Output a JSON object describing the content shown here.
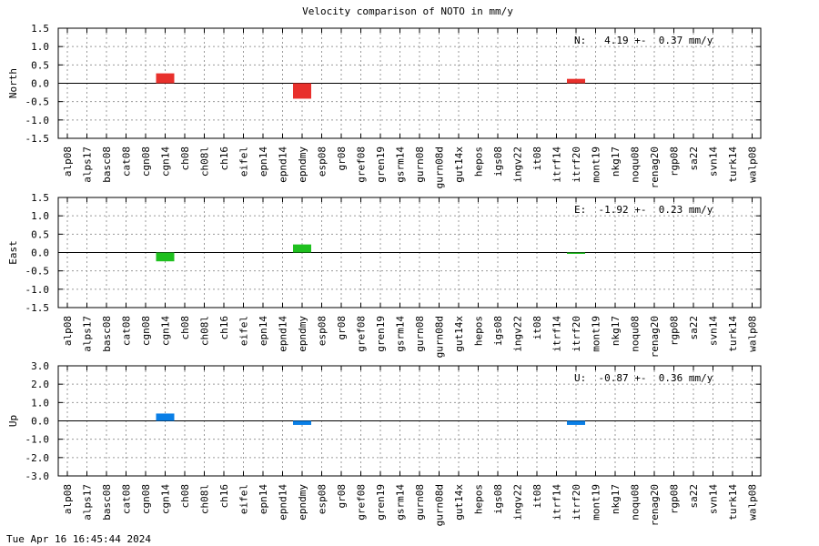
{
  "chart_data": {
    "title": "Velocity comparison of NOTO in mm/y",
    "categories": [
      "alp08",
      "alps17",
      "basc08",
      "cat08",
      "cgn08",
      "cgn14",
      "ch08",
      "ch08l",
      "ch16",
      "eifel",
      "epn14",
      "epnd14",
      "epndmy",
      "esp08",
      "gr08",
      "gref08",
      "gren19",
      "gsrm14",
      "gurn08",
      "gurn08d",
      "gut14x",
      "hepos",
      "igs08",
      "ingv22",
      "it08",
      "itrf14",
      "itrf20",
      "mont19",
      "nkg17",
      "noqu08",
      "renag20",
      "rgp08",
      "sa22",
      "svn14",
      "turk14",
      "walp08"
    ],
    "panels": [
      {
        "type": "bar",
        "ylabel": "North",
        "ylim": [
          -1.5,
          1.5
        ],
        "yticks": [
          "1.5",
          "1.0",
          "0.5",
          "0.0",
          "-0.5",
          "-1.0",
          "-1.5"
        ],
        "annotation": "N:   4.19 +-  0.37 mm/y",
        "color": "#e8302c",
        "values": {
          "cgn14": 0.27,
          "epndmy": -0.42,
          "itrf20": 0.12
        }
      },
      {
        "type": "bar",
        "ylabel": "East",
        "ylim": [
          -1.5,
          1.5
        ],
        "yticks": [
          "1.5",
          "1.0",
          "0.5",
          "0.0",
          "-0.5",
          "-1.0",
          "-1.5"
        ],
        "annotation": "E:  -1.92 +-  0.23 mm/y",
        "color": "#1fc01f",
        "values": {
          "cgn14": -0.24,
          "epndmy": 0.22,
          "itrf20": -0.02
        }
      },
      {
        "type": "bar",
        "ylabel": "Up",
        "ylim": [
          -3.0,
          3.0
        ],
        "yticks": [
          "3.0",
          "2.0",
          "1.0",
          "0.0",
          "-1.0",
          "-2.0",
          "-3.0"
        ],
        "annotation": "U:  -0.87 +-  0.36 mm/y",
        "color": "#0a7fe6",
        "values": {
          "cgn14": 0.4,
          "epndmy": -0.22,
          "itrf20": -0.22
        }
      }
    ],
    "grid": true
  },
  "timestamp": "Tue Apr 16 16:45:44 2024"
}
